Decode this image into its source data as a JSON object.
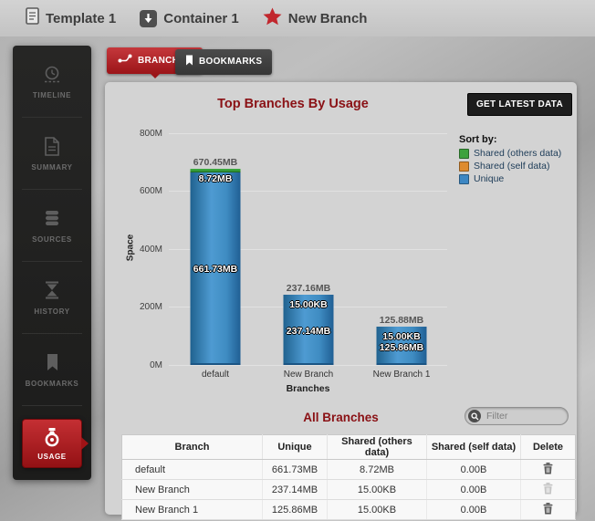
{
  "topbar": {
    "items": [
      {
        "label": "Template 1",
        "icon": "document-icon"
      },
      {
        "label": "Container 1",
        "icon": "container-icon"
      },
      {
        "label": "New Branch",
        "icon": "star-icon"
      }
    ]
  },
  "sidebar": {
    "items": [
      {
        "label": "TIMELINE",
        "icon": "clock-icon",
        "active": false
      },
      {
        "label": "SUMMARY",
        "icon": "summary-icon",
        "active": false
      },
      {
        "label": "SOURCES",
        "icon": "sources-icon",
        "active": false
      },
      {
        "label": "HISTORY",
        "icon": "history-icon",
        "active": false
      },
      {
        "label": "BOOKMARKS",
        "icon": "bookmark-icon",
        "active": false
      },
      {
        "label": "USAGE",
        "icon": "usage-icon",
        "active": true
      }
    ]
  },
  "tabs": [
    {
      "label": "BRANCHES",
      "icon": "branch-icon",
      "active": true
    },
    {
      "label": "BOOKMARKS",
      "icon": "bookmark-icon",
      "active": false
    }
  ],
  "panel": {
    "get_latest_button": "GET LATEST DATA",
    "accent_red": "#8a1115"
  },
  "chart_data": {
    "type": "bar",
    "stacked": true,
    "title": "Top Branches By Usage",
    "xlabel": "Branches",
    "ylabel": "Space",
    "ylim_mb": [
      0,
      800
    ],
    "yticks": [
      "800M",
      "600M",
      "400M",
      "200M",
      "0M"
    ],
    "grid": true,
    "legend_title": "Sort by:",
    "legend_position": "right",
    "categories": [
      "default",
      "New Branch",
      "New Branch 1"
    ],
    "series": [
      {
        "name": "Shared (others data)",
        "color": "#3da23d",
        "values_mb": [
          8.72,
          0.0146,
          0.0146
        ],
        "labels": [
          "8.72MB",
          "15.00KB",
          "15.00KB"
        ]
      },
      {
        "name": "Shared (self data)",
        "color": "#de8b2f",
        "values_mb": [
          0,
          0,
          0
        ]
      },
      {
        "name": "Unique",
        "color": "#3d87c3",
        "values_mb": [
          661.73,
          237.14,
          125.86
        ],
        "labels": [
          "661.73MB",
          "237.14MB",
          "125.86MB"
        ]
      }
    ],
    "totals_mb": [
      670.45,
      237.16,
      125.88
    ],
    "total_labels": [
      "670.45MB",
      "237.16MB",
      "125.88MB"
    ]
  },
  "all_branches": {
    "title": "All Branches",
    "filter_placeholder": "Filter",
    "table": {
      "headers": [
        "Branch",
        "Unique",
        "Shared (others data)",
        "Shared (self data)",
        "Delete"
      ],
      "rows": [
        {
          "branch": "default",
          "unique": "661.73MB",
          "shared_others": "8.72MB",
          "shared_self": "0.00B",
          "delete_enabled": true
        },
        {
          "branch": "New Branch",
          "unique": "237.14MB",
          "shared_others": "15.00KB",
          "shared_self": "0.00B",
          "delete_enabled": false
        },
        {
          "branch": "New Branch 1",
          "unique": "125.86MB",
          "shared_others": "15.00KB",
          "shared_self": "0.00B",
          "delete_enabled": true
        }
      ]
    }
  }
}
